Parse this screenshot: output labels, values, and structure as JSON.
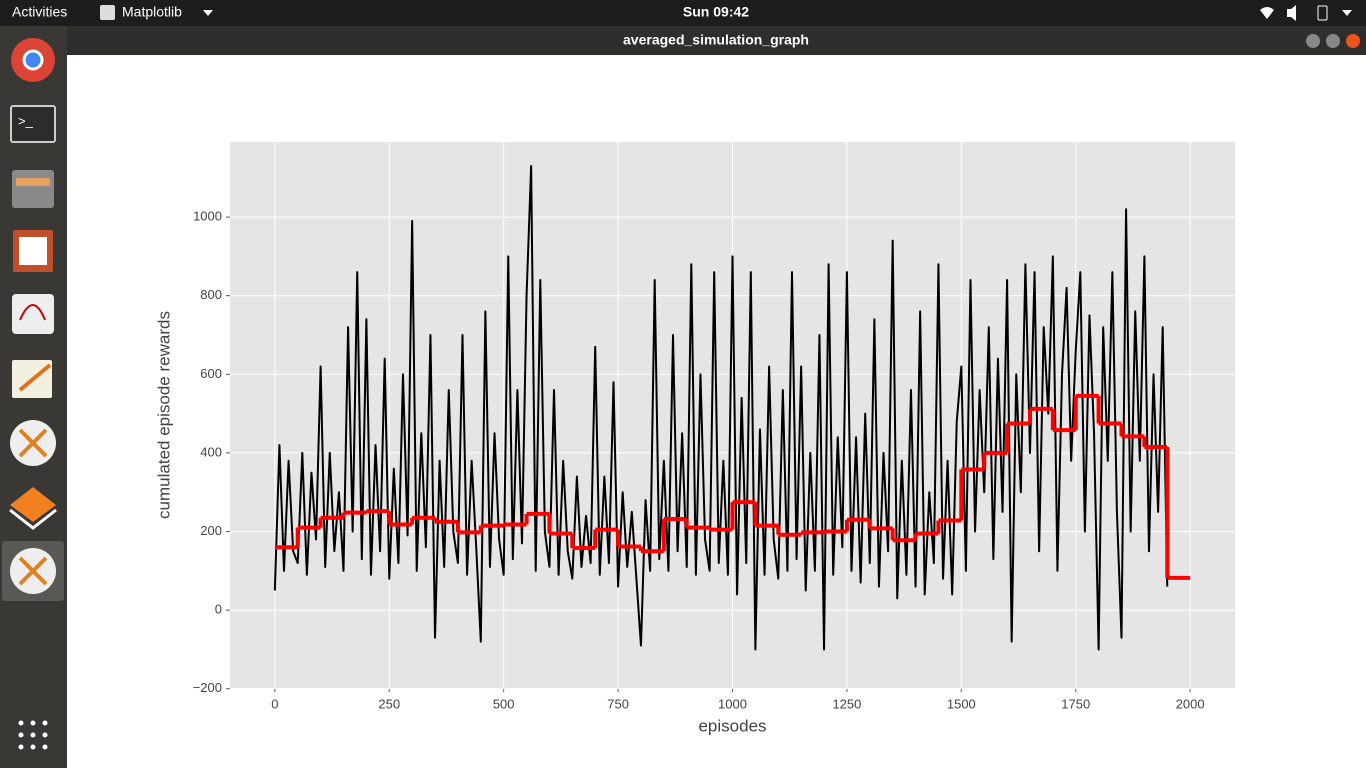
{
  "ui": {
    "activities": "Activities",
    "app_menu": "Matplotlib",
    "clock": "Sun 09:42",
    "window_title": "averaged_simulation_graph"
  },
  "chart_data": {
    "type": "line",
    "xlabel": "episodes",
    "ylabel": "cumulated episode rewards",
    "xlim": [
      -98,
      2098
    ],
    "ylim": [
      -198,
      1191
    ],
    "xticks": [
      0,
      250,
      500,
      750,
      1000,
      1250,
      1500,
      1750,
      2000
    ],
    "yticks": [
      {
        "value": -200,
        "label": "−200"
      },
      0,
      200,
      400,
      600,
      800,
      1000
    ],
    "grid": true,
    "background": "#e5e5e5",
    "series": [
      {
        "color": "#000000",
        "step": false,
        "x": [
          0,
          10,
          20,
          30,
          40,
          50,
          60,
          70,
          80,
          90,
          100,
          110,
          120,
          130,
          140,
          150,
          160,
          170,
          180,
          190,
          200,
          210,
          220,
          230,
          240,
          250,
          260,
          270,
          280,
          290,
          300,
          310,
          320,
          330,
          340,
          350,
          360,
          370,
          380,
          390,
          400,
          410,
          420,
          430,
          440,
          450,
          460,
          470,
          480,
          490,
          500,
          510,
          520,
          530,
          540,
          550,
          560,
          570,
          580,
          590,
          600,
          610,
          620,
          630,
          640,
          650,
          660,
          670,
          680,
          690,
          700,
          710,
          720,
          730,
          740,
          750,
          760,
          770,
          780,
          790,
          800,
          810,
          820,
          830,
          840,
          850,
          860,
          870,
          880,
          890,
          900,
          910,
          920,
          930,
          940,
          950,
          960,
          970,
          980,
          990,
          1000,
          1010,
          1020,
          1030,
          1040,
          1050,
          1060,
          1070,
          1080,
          1090,
          1100,
          1110,
          1120,
          1130,
          1140,
          1150,
          1160,
          1170,
          1180,
          1190,
          1200,
          1210,
          1220,
          1230,
          1240,
          1250,
          1260,
          1270,
          1280,
          1290,
          1300,
          1310,
          1320,
          1330,
          1340,
          1350,
          1360,
          1370,
          1380,
          1390,
          1400,
          1410,
          1420,
          1430,
          1440,
          1450,
          1460,
          1470,
          1480,
          1490,
          1500,
          1510,
          1520,
          1530,
          1540,
          1550,
          1560,
          1570,
          1580,
          1590,
          1600,
          1610,
          1620,
          1630,
          1640,
          1650,
          1660,
          1670,
          1680,
          1690,
          1700,
          1710,
          1720,
          1730,
          1740,
          1750,
          1760,
          1770,
          1780,
          1790,
          1800,
          1810,
          1820,
          1830,
          1840,
          1850,
          1860,
          1870,
          1880,
          1890,
          1900,
          1910,
          1920,
          1930,
          1940,
          1950
        ],
        "values": [
          50,
          420,
          100,
          380,
          150,
          120,
          400,
          90,
          350,
          180,
          620,
          110,
          400,
          150,
          300,
          100,
          720,
          200,
          860,
          130,
          740,
          90,
          420,
          150,
          640,
          80,
          360,
          120,
          600,
          190,
          990,
          100,
          450,
          160,
          700,
          -70,
          380,
          110,
          560,
          200,
          120,
          700,
          90,
          380,
          160,
          -80,
          760,
          110,
          450,
          180,
          90,
          900,
          130,
          560,
          170,
          800,
          1130,
          100,
          840,
          200,
          110,
          560,
          90,
          380,
          150,
          80,
          340,
          110,
          240,
          120,
          670,
          90,
          340,
          120,
          580,
          60,
          300,
          110,
          250,
          80,
          -90,
          280,
          100,
          840,
          130,
          380,
          100,
          700,
          150,
          450,
          110,
          880,
          90,
          600,
          180,
          100,
          860,
          120,
          380,
          90,
          900,
          40,
          540,
          120,
          860,
          -100,
          460,
          90,
          620,
          180,
          80,
          560,
          100,
          860,
          130,
          620,
          50,
          400,
          100,
          700,
          -100,
          880,
          90,
          440,
          160,
          860,
          100,
          440,
          70,
          500,
          120,
          740,
          60,
          400,
          150,
          940,
          30,
          380,
          90,
          560,
          60,
          760,
          40,
          300,
          120,
          880,
          80,
          380,
          40,
          480,
          620,
          100,
          840,
          200,
          560,
          300,
          720,
          130,
          640,
          250,
          840,
          -80,
          600,
          300,
          880,
          400,
          860,
          150,
          720,
          500,
          900,
          100,
          600,
          820,
          380,
          660,
          860,
          200,
          750,
          450,
          -100,
          720,
          380,
          860,
          250,
          -70,
          1020,
          200,
          760,
          380,
          900,
          150,
          600,
          250,
          720,
          60
        ]
      },
      {
        "color": "#ff0000",
        "step": true,
        "x": [
          0,
          50,
          100,
          150,
          200,
          250,
          300,
          350,
          400,
          450,
          500,
          550,
          600,
          650,
          700,
          750,
          800,
          850,
          900,
          950,
          1000,
          1050,
          1100,
          1150,
          1200,
          1250,
          1300,
          1350,
          1400,
          1450,
          1500,
          1550,
          1600,
          1650,
          1700,
          1750,
          1800,
          1850,
          1900,
          1950,
          2000
        ],
        "values": [
          160,
          210,
          235,
          248,
          252,
          218,
          235,
          225,
          198,
          215,
          218,
          245,
          195,
          158,
          205,
          162,
          150,
          232,
          210,
          205,
          275,
          215,
          192,
          198,
          200,
          230,
          208,
          178,
          195,
          228,
          358,
          400,
          475,
          512,
          458,
          545,
          475,
          442,
          415,
          82,
          82
        ]
      }
    ]
  }
}
